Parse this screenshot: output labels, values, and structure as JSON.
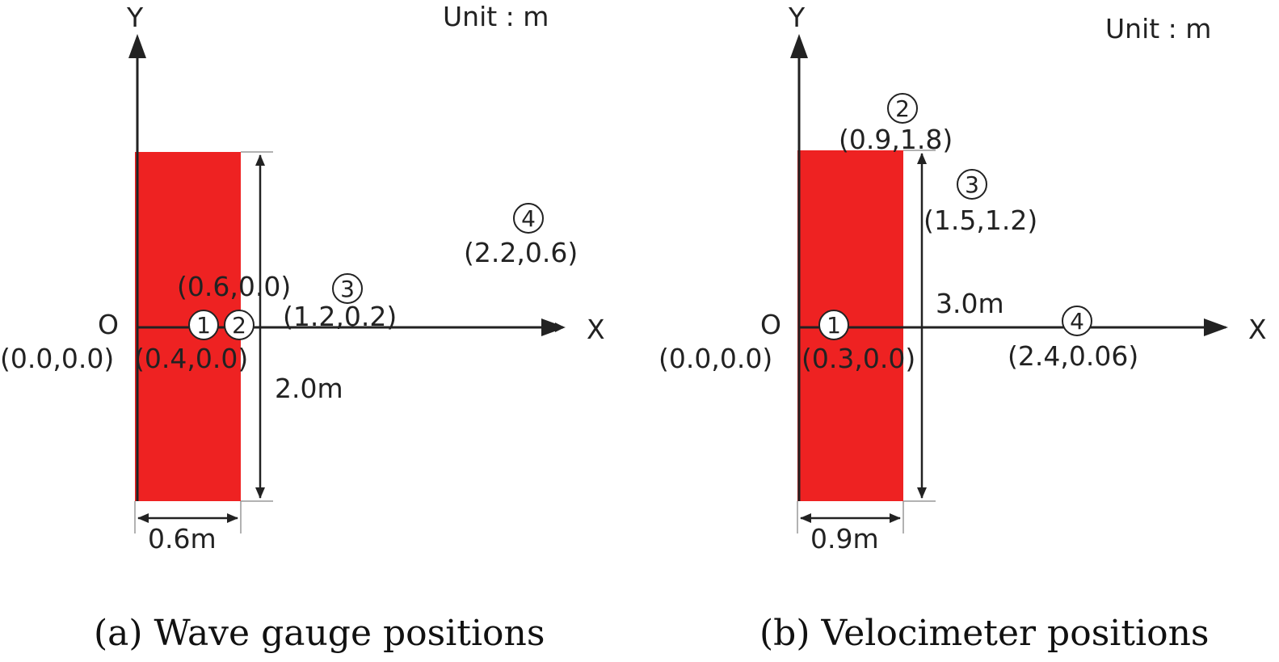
{
  "panel_a": {
    "unit_label": "Unit : m",
    "axis_y": "Y",
    "axis_x": "X",
    "origin_label": "O",
    "origin_coord": "(0.0,0.0)",
    "height_dim": "2.0m",
    "width_dim": "0.6m",
    "caption": "(a)  Wave  gauge  positions",
    "block_color": "#ee2222",
    "points": [
      {
        "num": "1",
        "coord": "(0.4,0.0)"
      },
      {
        "num": "2",
        "coord": "(0.6,0.0)"
      },
      {
        "num": "3",
        "coord": "(1.2,0.2)"
      },
      {
        "num": "4",
        "coord": "(2.2,0.6)"
      }
    ]
  },
  "panel_b": {
    "unit_label": "Unit : m",
    "axis_y": "Y",
    "axis_x": "X",
    "origin_label": "O",
    "origin_coord": "(0.0,0.0)",
    "height_dim": "3.0m",
    "width_dim": "0.9m",
    "caption": "(b)  Velocimeter  positions",
    "block_color": "#ee2222",
    "points": [
      {
        "num": "1",
        "coord": "(0.3,0.0)"
      },
      {
        "num": "2",
        "coord": "(0.9,1.8)"
      },
      {
        "num": "3",
        "coord": "(1.5,1.2)"
      },
      {
        "num": "4",
        "coord": "(2.4,0.06)"
      }
    ]
  }
}
